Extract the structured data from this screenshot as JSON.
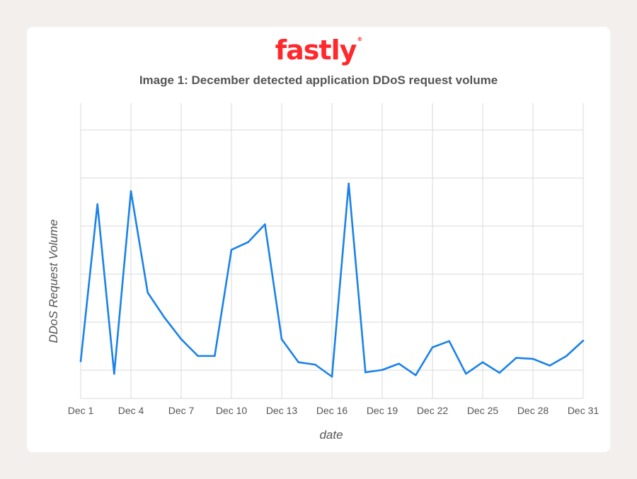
{
  "logo": {
    "text": "fastly",
    "mark": "®"
  },
  "chart_data": {
    "type": "line",
    "title": "Image 1: December detected application DDoS request volume",
    "xlabel": "date",
    "ylabel": "DDoS Request Volume",
    "categories": [
      "Dec 1",
      "Dec 2",
      "Dec 3",
      "Dec 4",
      "Dec 5",
      "Dec 6",
      "Dec 7",
      "Dec 8",
      "Dec 9",
      "Dec 10",
      "Dec 11",
      "Dec 12",
      "Dec 13",
      "Dec 14",
      "Dec 15",
      "Dec 16",
      "Dec 17",
      "Dec 18",
      "Dec 19",
      "Dec 20",
      "Dec 21",
      "Dec 22",
      "Dec 23",
      "Dec 24",
      "Dec 25",
      "Dec 26",
      "Dec 27",
      "Dec 28",
      "Dec 29",
      "Dec 30",
      "Dec 31"
    ],
    "x_tick_labels": [
      "Dec 1",
      "Dec 4",
      "Dec 7",
      "Dec 10",
      "Dec 13",
      "Dec 16",
      "Dec 19",
      "Dec 22",
      "Dec 25",
      "Dec 28",
      "Dec 31"
    ],
    "series": [
      {
        "values": [
          0.48,
          3.75,
          0.22,
          4.02,
          1.91,
          1.39,
          0.94,
          0.59,
          0.59,
          2.8,
          2.96,
          3.33,
          0.94,
          0.46,
          0.41,
          0.16,
          4.18,
          0.25,
          0.3,
          0.43,
          0.19,
          0.77,
          0.9,
          0.22,
          0.46,
          0.24,
          0.55,
          0.53,
          0.39,
          0.59,
          0.91
        ]
      }
    ],
    "ylim": [
      0,
      6
    ],
    "y_gridlines": 6,
    "y_tick_labels_shown": false,
    "grid": true,
    "line_color": "#1a82e9",
    "grid_color": "#d9d9d9"
  }
}
